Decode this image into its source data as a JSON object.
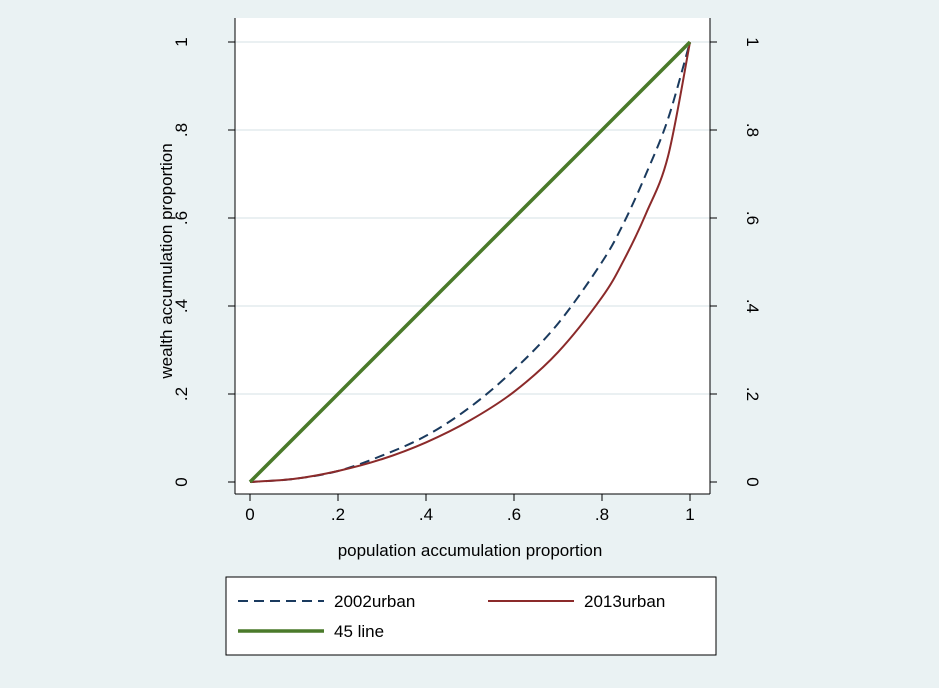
{
  "chart_data": {
    "type": "line",
    "xlabel": "population accumulation proportion",
    "ylabel": "wealth accumulation proportion",
    "xlim": [
      0,
      1
    ],
    "ylim": [
      0,
      1
    ],
    "x_ticks": [
      0,
      0.2,
      0.4,
      0.6,
      0.8,
      1
    ],
    "x_tick_labels": [
      "0",
      ".2",
      ".4",
      ".6",
      ".8",
      "1"
    ],
    "y_ticks": [
      0,
      0.2,
      0.4,
      0.6,
      0.8,
      1
    ],
    "y_tick_labels": [
      "0",
      ".2",
      ".4",
      ".6",
      ".8",
      "1"
    ],
    "right_axis_tick_labels": [
      "0",
      ".2",
      ".4",
      ".6",
      ".8",
      "1"
    ],
    "grid": true,
    "legend_position": "bottom",
    "series": [
      {
        "name": "2002urban",
        "style": "dashed",
        "color": "#1a3a5e",
        "x": [
          0,
          0.1,
          0.2,
          0.3,
          0.4,
          0.5,
          0.6,
          0.7,
          0.8,
          0.85,
          0.9,
          0.95,
          1.0
        ],
        "y": [
          0,
          0.007,
          0.025,
          0.06,
          0.105,
          0.17,
          0.255,
          0.36,
          0.5,
          0.59,
          0.7,
          0.825,
          1.0
        ]
      },
      {
        "name": "2013urban",
        "style": "solid",
        "color": "#8b2a2a",
        "x": [
          0,
          0.1,
          0.2,
          0.3,
          0.4,
          0.5,
          0.6,
          0.7,
          0.8,
          0.85,
          0.9,
          0.95,
          1.0
        ],
        "y": [
          0,
          0.007,
          0.025,
          0.052,
          0.09,
          0.14,
          0.205,
          0.295,
          0.42,
          0.505,
          0.61,
          0.74,
          1.0
        ]
      },
      {
        "name": "45 line",
        "style": "solid-thick",
        "color": "#4a7a2a",
        "x": [
          0,
          1
        ],
        "y": [
          0,
          1
        ]
      }
    ],
    "legend_layout": [
      [
        "2002urban",
        "2013urban"
      ],
      [
        "45 line"
      ]
    ]
  }
}
